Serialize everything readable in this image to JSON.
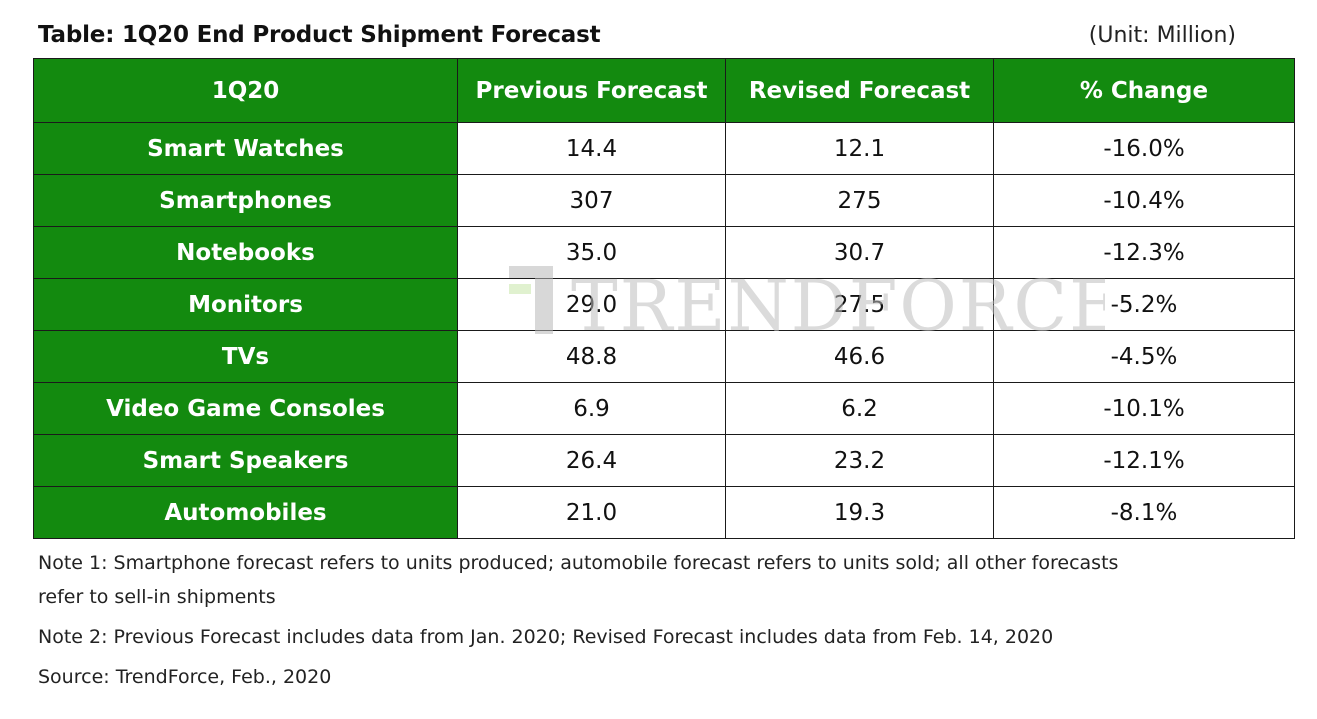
{
  "title": "Table: 1Q20 End Product Shipment Forecast",
  "unit": "(Unit: Million)",
  "watermark_text": "TRENDFORCE",
  "colors": {
    "header_green": "#138a0f",
    "header_text": "#ffffff",
    "border": "#1a1a1a",
    "watermark": "#c8c8c8"
  },
  "chart_data": {
    "type": "table",
    "title": "Table: 1Q20 End Product Shipment Forecast",
    "unit": "(Unit: Million)",
    "columns": [
      "1Q20",
      "Previous Forecast",
      "Revised Forecast",
      "% Change"
    ],
    "rows": [
      {
        "label": "Smart Watches",
        "previous": "14.4",
        "revised": "12.1",
        "change": "-16.0%"
      },
      {
        "label": "Smartphones",
        "previous": "307",
        "revised": "275",
        "change": "-10.4%"
      },
      {
        "label": "Notebooks",
        "previous": "35.0",
        "revised": "30.7",
        "change": "-12.3%"
      },
      {
        "label": "Monitors",
        "previous": "29.0",
        "revised": "27.5",
        "change": "-5.2%"
      },
      {
        "label": "TVs",
        "previous": "48.8",
        "revised": "46.6",
        "change": "-4.5%"
      },
      {
        "label": "Video Game Consoles",
        "previous": "6.9",
        "revised": "6.2",
        "change": "-10.1%"
      },
      {
        "label": "Smart Speakers",
        "previous": "26.4",
        "revised": "23.2",
        "change": "-12.1%"
      },
      {
        "label": "Automobiles",
        "previous": "21.0",
        "revised": "19.3",
        "change": "-8.1%"
      }
    ]
  },
  "notes": {
    "note1_line1": "Note 1: Smartphone forecast refers to units produced; automobile forecast refers to units sold; all other forecasts",
    "note1_line2": "refer to sell-in shipments",
    "note2": "Note 2: Previous Forecast includes data from Jan. 2020; Revised Forecast includes data from Feb. 14, 2020",
    "source": "Source: TrendForce, Feb., 2020"
  }
}
